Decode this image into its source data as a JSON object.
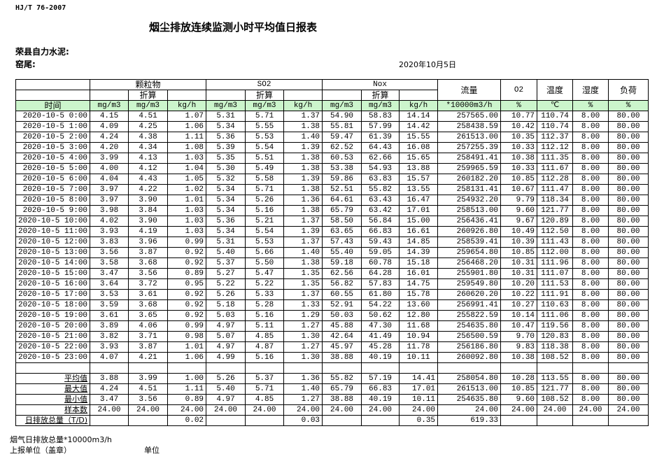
{
  "header": {
    "standard": "HJ/T  76-2007",
    "title": "烟尘排放连续监测小时平均值日报表",
    "company": "荣县自力水泥:",
    "kiln": "窑尾:",
    "date": "2020年10月5日"
  },
  "table": {
    "groups": {
      "particulate": "颗粒物",
      "so2": "SO2",
      "nox": "Nox",
      "flow": "流量",
      "o2": "O2",
      "temp": "温度",
      "humidity": "湿度",
      "load": "负荷"
    },
    "converted": "折算",
    "time_label": "时间",
    "units": [
      "mg/m3",
      "mg/m3",
      "kg/h",
      "mg/m3",
      "mg/m3",
      "kg/h",
      "mg/m3",
      "mg/m3",
      "kg/h",
      "*10000m3/h",
      "%",
      "℃",
      "%",
      "%"
    ],
    "rows": [
      [
        "2020-10-5 0:00",
        "4.15",
        "4.51",
        "1.07",
        "5.31",
        "5.71",
        "1.37",
        "54.90",
        "58.83",
        "14.14",
        "257565.00",
        "10.77",
        "110.74",
        "8.00",
        "80.00"
      ],
      [
        "2020-10-5 1:00",
        "4.09",
        "4.25",
        "1.06",
        "5.34",
        "5.55",
        "1.38",
        "55.81",
        "57.99",
        "14.42",
        "258438.59",
        "10.42",
        "110.74",
        "8.00",
        "80.00"
      ],
      [
        "2020-10-5 2:00",
        "4.24",
        "4.38",
        "1.11",
        "5.36",
        "5.53",
        "1.40",
        "59.47",
        "61.39",
        "15.55",
        "261513.00",
        "10.35",
        "112.37",
        "8.00",
        "80.00"
      ],
      [
        "2020-10-5 3:00",
        "4.20",
        "4.34",
        "1.08",
        "5.39",
        "5.54",
        "1.39",
        "62.52",
        "64.43",
        "16.08",
        "257255.39",
        "10.33",
        "112.12",
        "8.00",
        "80.00"
      ],
      [
        "2020-10-5 4:00",
        "3.99",
        "4.13",
        "1.03",
        "5.35",
        "5.51",
        "1.38",
        "60.53",
        "62.66",
        "15.65",
        "258491.41",
        "10.38",
        "111.35",
        "8.00",
        "80.00"
      ],
      [
        "2020-10-5 5:00",
        "4.00",
        "4.12",
        "1.04",
        "5.30",
        "5.49",
        "1.38",
        "53.38",
        "54.93",
        "13.88",
        "259965.59",
        "10.33",
        "111.67",
        "8.00",
        "80.00"
      ],
      [
        "2020-10-5 6:00",
        "4.04",
        "4.43",
        "1.05",
        "5.32",
        "5.58",
        "1.39",
        "59.86",
        "63.83",
        "15.57",
        "260182.20",
        "10.85",
        "112.28",
        "8.00",
        "80.00"
      ],
      [
        "2020-10-5 7:00",
        "3.97",
        "4.22",
        "1.02",
        "5.34",
        "5.71",
        "1.38",
        "52.51",
        "55.82",
        "13.55",
        "258131.41",
        "10.67",
        "111.47",
        "8.00",
        "80.00"
      ],
      [
        "2020-10-5 8:00",
        "3.97",
        "3.90",
        "1.01",
        "5.34",
        "5.26",
        "1.36",
        "64.61",
        "63.43",
        "16.47",
        "254932.20",
        "9.79",
        "118.34",
        "8.00",
        "80.00"
      ],
      [
        "2020-10-5 9:00",
        "3.98",
        "3.84",
        "1.03",
        "5.34",
        "5.16",
        "1.38",
        "65.79",
        "63.42",
        "17.01",
        "258513.00",
        "9.60",
        "121.77",
        "8.00",
        "80.00"
      ],
      [
        "2020-10-5 10:00",
        "4.02",
        "3.90",
        "1.03",
        "5.36",
        "5.21",
        "1.37",
        "58.50",
        "56.84",
        "15.00",
        "256436.41",
        "9.67",
        "120.89",
        "8.00",
        "80.00"
      ],
      [
        "2020-10-5 11:00",
        "3.93",
        "4.19",
        "1.03",
        "5.34",
        "5.54",
        "1.39",
        "63.65",
        "66.83",
        "16.61",
        "260926.80",
        "10.49",
        "112.50",
        "8.00",
        "80.00"
      ],
      [
        "2020-10-5 12:00",
        "3.83",
        "3.96",
        "0.99",
        "5.31",
        "5.53",
        "1.37",
        "57.43",
        "59.43",
        "14.85",
        "258539.41",
        "10.39",
        "111.43",
        "8.00",
        "80.00"
      ],
      [
        "2020-10-5 13:00",
        "3.56",
        "3.87",
        "0.92",
        "5.40",
        "5.66",
        "1.40",
        "55.40",
        "59.05",
        "14.39",
        "259654.80",
        "10.85",
        "112.00",
        "8.00",
        "80.00"
      ],
      [
        "2020-10-5 14:00",
        "3.58",
        "3.68",
        "0.92",
        "5.37",
        "5.50",
        "1.38",
        "59.18",
        "60.78",
        "15.18",
        "256468.20",
        "10.31",
        "111.96",
        "8.00",
        "80.00"
      ],
      [
        "2020-10-5 15:00",
        "3.47",
        "3.56",
        "0.89",
        "5.27",
        "5.47",
        "1.35",
        "62.56",
        "64.28",
        "16.01",
        "255901.80",
        "10.31",
        "111.07",
        "8.00",
        "80.00"
      ],
      [
        "2020-10-5 16:00",
        "3.64",
        "3.72",
        "0.95",
        "5.22",
        "5.22",
        "1.35",
        "56.82",
        "57.83",
        "14.75",
        "259549.80",
        "10.20",
        "111.53",
        "8.00",
        "80.00"
      ],
      [
        "2020-10-5 17:00",
        "3.53",
        "3.61",
        "0.92",
        "5.26",
        "5.33",
        "1.37",
        "60.55",
        "61.80",
        "15.78",
        "260620.20",
        "10.22",
        "111.91",
        "8.00",
        "80.00"
      ],
      [
        "2020-10-5 18:00",
        "3.59",
        "3.68",
        "0.92",
        "5.18",
        "5.28",
        "1.33",
        "52.91",
        "54.22",
        "13.60",
        "256991.41",
        "10.27",
        "110.63",
        "8.00",
        "80.00"
      ],
      [
        "2020-10-5 19:00",
        "3.61",
        "3.65",
        "0.92",
        "5.03",
        "5.16",
        "1.29",
        "50.03",
        "50.62",
        "12.80",
        "255822.59",
        "10.14",
        "111.06",
        "8.00",
        "80.00"
      ],
      [
        "2020-10-5 20:00",
        "3.89",
        "4.06",
        "0.99",
        "4.97",
        "5.11",
        "1.27",
        "45.88",
        "47.30",
        "11.68",
        "254635.80",
        "10.47",
        "119.56",
        "8.00",
        "80.00"
      ],
      [
        "2020-10-5 21:00",
        "3.82",
        "3.71",
        "0.98",
        "5.07",
        "4.85",
        "1.30",
        "42.64",
        "41.49",
        "10.94",
        "256500.59",
        "9.70",
        "120.83",
        "8.00",
        "80.00"
      ],
      [
        "2020-10-5 22:00",
        "3.93",
        "3.87",
        "1.01",
        "4.97",
        "4.87",
        "1.27",
        "45.97",
        "45.28",
        "11.78",
        "256186.80",
        "9.83",
        "118.38",
        "8.00",
        "80.00"
      ],
      [
        "2020-10-5 23:00",
        "4.07",
        "4.21",
        "1.06",
        "4.99",
        "5.16",
        "1.30",
        "38.88",
        "40.19",
        "10.11",
        "260092.80",
        "10.38",
        "108.52",
        "8.00",
        "80.00"
      ]
    ],
    "stats": [
      [
        "平均值",
        "3.88",
        "3.99",
        "1.00",
        "5.26",
        "5.37",
        "1.36",
        "55.82",
        "57.19",
        "14.41",
        "258054.80",
        "10.28",
        "113.55",
        "8.00",
        "80.00"
      ],
      [
        "最大值",
        "4.24",
        "4.51",
        "1.11",
        "5.40",
        "5.71",
        "1.40",
        "65.79",
        "66.83",
        "17.01",
        "261513.00",
        "10.85",
        "121.77",
        "8.00",
        "80.00"
      ],
      [
        "最小值",
        "3.47",
        "3.56",
        "0.89",
        "4.97",
        "4.85",
        "1.27",
        "38.88",
        "40.19",
        "10.11",
        "254635.80",
        "9.60",
        "108.52",
        "8.00",
        "80.00"
      ],
      [
        "样本数",
        "24.00",
        "24.00",
        "24.00",
        "24.00",
        "24.00",
        "24.00",
        "24.00",
        "24.00",
        "24.00",
        "24.00",
        "24.00",
        "24.00",
        "24.00",
        "24.00"
      ]
    ],
    "total": [
      "日排放总量（T/D)",
      "",
      "",
      "0.02",
      "",
      "",
      "0.03",
      "",
      "",
      "0.35",
      "619.33",
      "",
      "",
      "",
      ""
    ]
  },
  "footer": {
    "flue_gas_total": "烟气日排放总量*10000m3/h",
    "reporting_unit": "上报单位（盖章）",
    "unit": "单位"
  }
}
